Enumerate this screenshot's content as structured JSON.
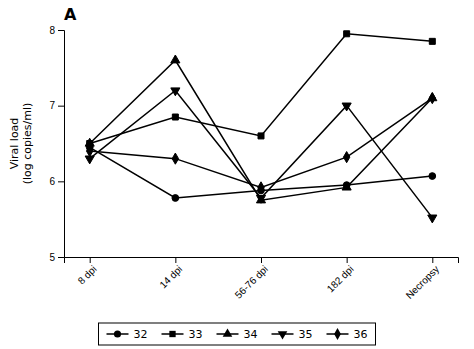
{
  "chart_data": {
    "type": "line",
    "title": "A",
    "ylabel": "Viral load\n(log copies/ml)",
    "categories": [
      "8 dpi",
      "14 dpi",
      "56-76 dpi",
      "182 dpi",
      "Necropsy"
    ],
    "series": [
      {
        "name": "32",
        "color": "#000000",
        "marker": "circle",
        "values": [
          6.45,
          5.78,
          5.88,
          5.95,
          6.07
        ]
      },
      {
        "name": "33",
        "color": "#000000",
        "marker": "square",
        "values": [
          6.5,
          6.85,
          6.6,
          7.95,
          7.85
        ]
      },
      {
        "name": "34",
        "color": "#000000",
        "marker": "triangle-up",
        "values": [
          6.5,
          7.6,
          5.75,
          5.92,
          7.1
        ]
      },
      {
        "name": "35",
        "color": "#000000",
        "marker": "triangle-down",
        "values": [
          6.3,
          7.2,
          5.78,
          7.0,
          5.52
        ]
      },
      {
        "name": "36",
        "color": "#000000",
        "marker": "diamond",
        "values": [
          6.4,
          6.3,
          5.92,
          6.32,
          7.1
        ]
      }
    ],
    "ylim": [
      5,
      8
    ],
    "yticks": [
      5,
      6,
      7,
      8
    ],
    "grid": false,
    "legend": "bottom"
  }
}
